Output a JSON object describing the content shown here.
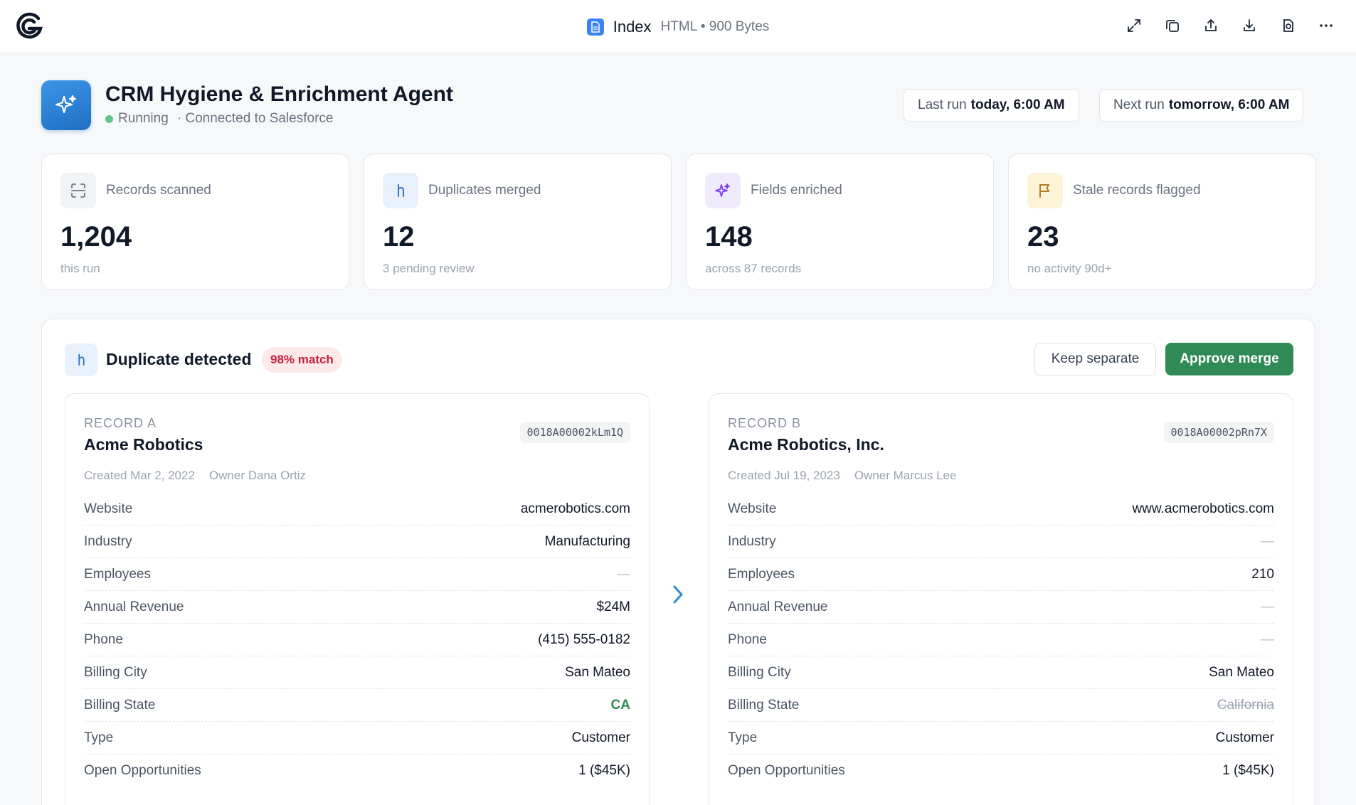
{
  "topbar": {
    "doc_name": "Index",
    "doc_meta": "HTML • 900 Bytes",
    "actions": [
      "expand-icon",
      "copy-icon",
      "share-icon",
      "download-icon",
      "duplicate-file-icon",
      "more-icon"
    ]
  },
  "agent": {
    "title": "CRM Hygiene & Enrichment Agent",
    "status": "Running",
    "connection": "· Connected to Salesforce",
    "last_run_label": "Last run",
    "last_run_value": "today, 6:00 AM",
    "next_run_label": "Next run",
    "next_run_value": "tomorrow, 6:00 AM"
  },
  "stats": [
    {
      "label": "Records scanned",
      "value": "1,204",
      "sub": "this run",
      "icon": "scan-icon",
      "icon_bg": "#f1f3f6",
      "icon_color": "#6b7280"
    },
    {
      "label": "Duplicates merged",
      "value": "12",
      "sub": "3 pending review",
      "icon": "merge-icon",
      "icon_bg": "#e8f1fb",
      "icon_color": "#2f6fb3"
    },
    {
      "label": "Fields enriched",
      "value": "148",
      "sub": "across 87 records",
      "icon": "sparkle-icon",
      "icon_bg": "#f0eafd",
      "icon_color": "#7c3aed"
    },
    {
      "label": "Stale records flagged",
      "value": "23",
      "sub": "no activity 90d+",
      "icon": "flag-icon",
      "icon_bg": "#fdf3d6",
      "icon_color": "#b7791f"
    }
  ],
  "duplicate": {
    "title": "Duplicate detected",
    "match": "98% match",
    "keep_label": "Keep separate",
    "approve_label": "Approve merge",
    "record_a": {
      "label": "RECORD A",
      "name": "Acme Robotics",
      "id": "0018A00002kLm1Q",
      "created": "Created Mar 2, 2022",
      "owner": "Owner Dana Ortiz",
      "fields": [
        {
          "label": "Website",
          "value": "acmerobotics.com",
          "style": ""
        },
        {
          "label": "Industry",
          "value": "Manufacturing",
          "style": ""
        },
        {
          "label": "Employees",
          "value": "—",
          "style": "empty"
        },
        {
          "label": "Annual Revenue",
          "value": "$24M",
          "style": ""
        },
        {
          "label": "Phone",
          "value": "(415) 555-0182",
          "style": ""
        },
        {
          "label": "Billing City",
          "value": "San Mateo",
          "style": ""
        },
        {
          "label": "Billing State",
          "value": "CA",
          "style": "highlight"
        },
        {
          "label": "Type",
          "value": "Customer",
          "style": ""
        },
        {
          "label": "Open Opportunities",
          "value": "1 ($45K)",
          "style": ""
        }
      ]
    },
    "record_b": {
      "label": "RECORD B",
      "name": "Acme Robotics, Inc.",
      "id": "0018A00002pRn7X",
      "created": "Created Jul 19, 2023",
      "owner": "Owner Marcus Lee",
      "fields": [
        {
          "label": "Website",
          "value": "www.acmerobotics.com",
          "style": ""
        },
        {
          "label": "Industry",
          "value": "—",
          "style": "empty"
        },
        {
          "label": "Employees",
          "value": "210",
          "style": ""
        },
        {
          "label": "Annual Revenue",
          "value": "—",
          "style": "empty"
        },
        {
          "label": "Phone",
          "value": "—",
          "style": "empty"
        },
        {
          "label": "Billing City",
          "value": "San Mateo",
          "style": ""
        },
        {
          "label": "Billing State",
          "value": "California",
          "style": "struck"
        },
        {
          "label": "Type",
          "value": "Customer",
          "style": ""
        },
        {
          "label": "Open Opportunities",
          "value": "1 ($45K)",
          "style": ""
        }
      ]
    }
  }
}
